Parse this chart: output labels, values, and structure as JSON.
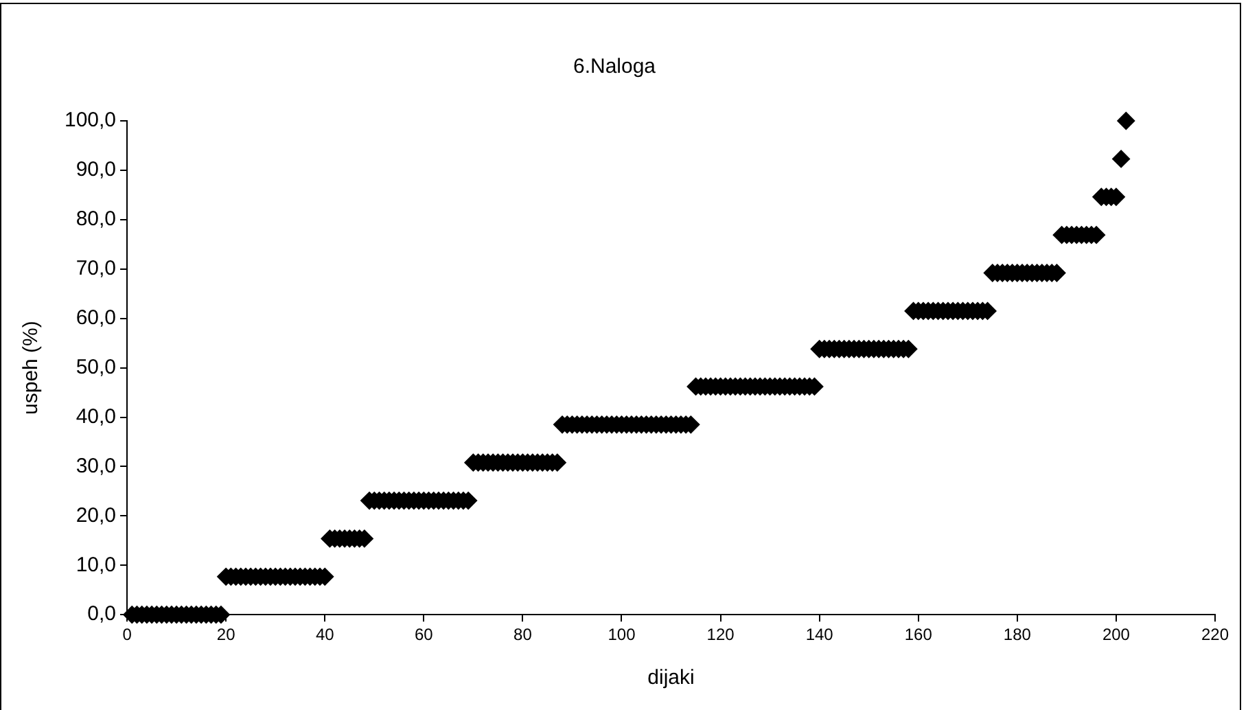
{
  "chart_data": {
    "type": "scatter",
    "title": "6.Naloga",
    "xlabel": "dijaki",
    "ylabel": "uspeh (%)",
    "xlim": [
      0,
      220
    ],
    "xticks": [
      0,
      20,
      40,
      60,
      80,
      100,
      120,
      140,
      160,
      180,
      200,
      220
    ],
    "ylim": [
      0,
      100
    ],
    "yticks": [
      {
        "value": 0,
        "label": "0,0"
      },
      {
        "value": 10,
        "label": "10,0"
      },
      {
        "value": 20,
        "label": "20,0"
      },
      {
        "value": 30,
        "label": "30,0"
      },
      {
        "value": 40,
        "label": "40,0"
      },
      {
        "value": 50,
        "label": "50,0"
      },
      {
        "value": 60,
        "label": "60,0"
      },
      {
        "value": 70,
        "label": "70,0"
      },
      {
        "value": 80,
        "label": "80,0"
      },
      {
        "value": 90,
        "label": "90,0"
      },
      {
        "value": 100,
        "label": "100,0"
      }
    ],
    "grid": false,
    "legend": false,
    "marker": "diamond",
    "series": [
      {
        "color": "#000000",
        "x": [
          1,
          2,
          3,
          4,
          5,
          6,
          7,
          8,
          9,
          10,
          11,
          12,
          13,
          14,
          15,
          16,
          17,
          18,
          19,
          20,
          21,
          22,
          23,
          24,
          25,
          26,
          27,
          28,
          29,
          30,
          31,
          32,
          33,
          34,
          35,
          36,
          37,
          38,
          39,
          40,
          41,
          42,
          43,
          44,
          45,
          46,
          47,
          48,
          49,
          50,
          51,
          52,
          53,
          54,
          55,
          56,
          57,
          58,
          59,
          60,
          61,
          62,
          63,
          64,
          65,
          66,
          67,
          68,
          69,
          70,
          71,
          72,
          73,
          74,
          75,
          76,
          77,
          78,
          79,
          80,
          81,
          82,
          83,
          84,
          85,
          86,
          87,
          88,
          89,
          90,
          91,
          92,
          93,
          94,
          95,
          96,
          97,
          98,
          99,
          100,
          101,
          102,
          103,
          104,
          105,
          106,
          107,
          108,
          109,
          110,
          111,
          112,
          113,
          114,
          115,
          116,
          117,
          118,
          119,
          120,
          121,
          122,
          123,
          124,
          125,
          126,
          127,
          128,
          129,
          130,
          131,
          132,
          133,
          134,
          135,
          136,
          137,
          138,
          139,
          140,
          141,
          142,
          143,
          144,
          145,
          146,
          147,
          148,
          149,
          150,
          151,
          152,
          153,
          154,
          155,
          156,
          157,
          158,
          159,
          160,
          161,
          162,
          163,
          164,
          165,
          166,
          167,
          168,
          169,
          170,
          171,
          172,
          173,
          174,
          175,
          176,
          177,
          178,
          179,
          180,
          181,
          182,
          183,
          184,
          185,
          186,
          187,
          188,
          189,
          190,
          191,
          192,
          193,
          194,
          195,
          196,
          197,
          198,
          199,
          200,
          201,
          202
        ],
        "values": [
          0,
          0,
          0,
          0,
          0,
          0,
          0,
          0,
          0,
          0,
          0,
          0,
          0,
          0,
          0,
          0,
          0,
          0,
          0,
          7.7,
          7.7,
          7.7,
          7.7,
          7.7,
          7.7,
          7.7,
          7.7,
          7.7,
          7.7,
          7.7,
          7.7,
          7.7,
          7.7,
          7.7,
          7.7,
          7.7,
          7.7,
          7.7,
          7.7,
          7.7,
          15.4,
          15.4,
          15.4,
          15.4,
          15.4,
          15.4,
          15.4,
          15.4,
          23.1,
          23.1,
          23.1,
          23.1,
          23.1,
          23.1,
          23.1,
          23.1,
          23.1,
          23.1,
          23.1,
          23.1,
          23.1,
          23.1,
          23.1,
          23.1,
          23.1,
          23.1,
          23.1,
          23.1,
          23.1,
          30.8,
          30.8,
          30.8,
          30.8,
          30.8,
          30.8,
          30.8,
          30.8,
          30.8,
          30.8,
          30.8,
          30.8,
          30.8,
          30.8,
          30.8,
          30.8,
          30.8,
          30.8,
          38.5,
          38.5,
          38.5,
          38.5,
          38.5,
          38.5,
          38.5,
          38.5,
          38.5,
          38.5,
          38.5,
          38.5,
          38.5,
          38.5,
          38.5,
          38.5,
          38.5,
          38.5,
          38.5,
          38.5,
          38.5,
          38.5,
          38.5,
          38.5,
          38.5,
          38.5,
          38.5,
          46.2,
          46.2,
          46.2,
          46.2,
          46.2,
          46.2,
          46.2,
          46.2,
          46.2,
          46.2,
          46.2,
          46.2,
          46.2,
          46.2,
          46.2,
          46.2,
          46.2,
          46.2,
          46.2,
          46.2,
          46.2,
          46.2,
          46.2,
          46.2,
          46.2,
          53.8,
          53.8,
          53.8,
          53.8,
          53.8,
          53.8,
          53.8,
          53.8,
          53.8,
          53.8,
          53.8,
          53.8,
          53.8,
          53.8,
          53.8,
          53.8,
          53.8,
          53.8,
          53.8,
          61.5,
          61.5,
          61.5,
          61.5,
          61.5,
          61.5,
          61.5,
          61.5,
          61.5,
          61.5,
          61.5,
          61.5,
          61.5,
          61.5,
          61.5,
          61.5,
          69.2,
          69.2,
          69.2,
          69.2,
          69.2,
          69.2,
          69.2,
          69.2,
          69.2,
          69.2,
          69.2,
          69.2,
          69.2,
          69.2,
          76.9,
          76.9,
          76.9,
          76.9,
          76.9,
          76.9,
          76.9,
          76.9,
          84.6,
          84.6,
          84.6,
          84.6,
          92.3,
          100
        ]
      }
    ]
  }
}
